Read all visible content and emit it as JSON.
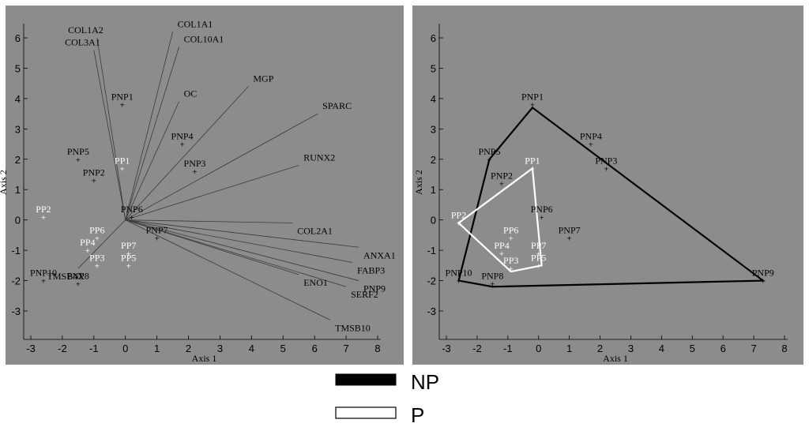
{
  "chart_data": [
    {
      "type": "scatter",
      "subtype": "biplot",
      "xlabel": "Axis 1",
      "ylabel": "Axis 2",
      "xlim": [
        -3.3,
        8.2
      ],
      "ylim": [
        -3.8,
        6.6
      ],
      "xticks": [
        -3,
        -2,
        -1,
        0,
        1,
        2,
        3,
        4,
        5,
        6,
        7,
        8
      ],
      "yticks": [
        -3,
        -2,
        -1,
        0,
        1,
        2,
        3,
        4,
        5,
        6
      ],
      "grid": false,
      "points": [
        {
          "label": "PNP1",
          "x": -0.1,
          "y": 3.8,
          "group": "NP",
          "color": "#000000"
        },
        {
          "label": "PNP2",
          "x": -1.0,
          "y": 1.3,
          "group": "NP",
          "color": "#000000"
        },
        {
          "label": "PNP3",
          "x": 2.2,
          "y": 1.6,
          "group": "NP",
          "color": "#000000"
        },
        {
          "label": "PNP4",
          "x": 1.8,
          "y": 2.5,
          "group": "NP",
          "color": "#000000"
        },
        {
          "label": "PNP5",
          "x": -1.5,
          "y": 2.0,
          "group": "NP",
          "color": "#000000"
        },
        {
          "label": "PNP6",
          "x": 0.2,
          "y": 0.1,
          "group": "NP",
          "color": "#000000"
        },
        {
          "label": "PNP7",
          "x": 1.0,
          "y": -0.6,
          "group": "NP",
          "color": "#000000"
        },
        {
          "label": "PNP8",
          "x": -1.5,
          "y": -2.1,
          "group": "NP",
          "color": "#000000"
        },
        {
          "label": "PNP10",
          "x": -2.6,
          "y": -2.0,
          "group": "NP",
          "color": "#000000"
        },
        {
          "label": "PP1",
          "x": -0.1,
          "y": 1.7,
          "group": "P",
          "color": "#ffffff"
        },
        {
          "label": "PP2",
          "x": -2.6,
          "y": 0.1,
          "group": "P",
          "color": "#ffffff"
        },
        {
          "label": "PP3",
          "x": -0.9,
          "y": -1.5,
          "group": "P",
          "color": "#ffffff"
        },
        {
          "label": "PP4",
          "x": -1.2,
          "y": -1.0,
          "group": "P",
          "color": "#ffffff"
        },
        {
          "label": "PP5",
          "x": 0.1,
          "y": -1.5,
          "group": "P",
          "color": "#ffffff"
        },
        {
          "label": "PP6",
          "x": -0.9,
          "y": -0.6,
          "group": "P",
          "color": "#ffffff"
        },
        {
          "label": "PP7",
          "x": 0.1,
          "y": -1.1,
          "group": "P",
          "color": "#ffffff"
        }
      ],
      "vectors": [
        {
          "label": "COL1A2",
          "x": -0.9,
          "y": 6.0
        },
        {
          "label": "COL3A1",
          "x": -1.0,
          "y": 5.6
        },
        {
          "label": "COL1A1",
          "x": 1.5,
          "y": 6.2
        },
        {
          "label": "COL10A1",
          "x": 1.7,
          "y": 5.7
        },
        {
          "label": "OC",
          "x": 1.7,
          "y": 3.9
        },
        {
          "label": "MGP",
          "x": 3.9,
          "y": 4.4
        },
        {
          "label": "SPARC",
          "x": 6.1,
          "y": 3.5
        },
        {
          "label": "RUNX2",
          "x": 5.5,
          "y": 1.8
        },
        {
          "label": "COL2A1",
          "x": 5.3,
          "y": -0.1
        },
        {
          "label": "ANXA1",
          "x": 7.4,
          "y": -0.9
        },
        {
          "label": "FABP3",
          "x": 7.2,
          "y": -1.4
        },
        {
          "label": "PNP9",
          "x": 7.4,
          "y": -2.0
        },
        {
          "label": "SERF2",
          "x": 7.0,
          "y": -2.2
        },
        {
          "label": "ENO1",
          "x": 5.5,
          "y": -1.8
        },
        {
          "label": "TMSB10",
          "x": 6.5,
          "y": -3.3
        },
        {
          "label": "TMSB4X",
          "x": -1.5,
          "y": -1.6
        }
      ]
    },
    {
      "type": "scatter",
      "subtype": "convex-hull",
      "xlabel": "Axis 1",
      "ylabel": "Axis 2",
      "xlim": [
        -3.3,
        8.2
      ],
      "ylim": [
        -3.8,
        6.6
      ],
      "xticks": [
        -3,
        -2,
        -1,
        0,
        1,
        2,
        3,
        4,
        5,
        6,
        7,
        8
      ],
      "yticks": [
        -3,
        -2,
        -1,
        0,
        1,
        2,
        3,
        4,
        5,
        6
      ],
      "grid": false,
      "points": [
        {
          "label": "PNP1",
          "x": -0.2,
          "y": 3.8,
          "group": "NP",
          "color": "#000000"
        },
        {
          "label": "PNP2",
          "x": -1.2,
          "y": 1.2,
          "group": "NP",
          "color": "#000000"
        },
        {
          "label": "PNP3",
          "x": 2.2,
          "y": 1.7,
          "group": "NP",
          "color": "#000000"
        },
        {
          "label": "PNP4",
          "x": 1.7,
          "y": 2.5,
          "group": "NP",
          "color": "#000000"
        },
        {
          "label": "PNP5",
          "x": -1.6,
          "y": 2.0,
          "group": "NP",
          "color": "#000000"
        },
        {
          "label": "PNP6",
          "x": 0.1,
          "y": 0.1,
          "group": "NP",
          "color": "#000000"
        },
        {
          "label": "PNP7",
          "x": 1.0,
          "y": -0.6,
          "group": "NP",
          "color": "#000000"
        },
        {
          "label": "PNP8",
          "x": -1.5,
          "y": -2.1,
          "group": "NP",
          "color": "#000000"
        },
        {
          "label": "PNP9",
          "x": 7.3,
          "y": -2.0,
          "group": "NP",
          "color": "#000000"
        },
        {
          "label": "PNP10",
          "x": -2.6,
          "y": -2.0,
          "group": "NP",
          "color": "#000000"
        },
        {
          "label": "PP1",
          "x": -0.2,
          "y": 1.7,
          "group": "P",
          "color": "#ffffff"
        },
        {
          "label": "PP2",
          "x": -2.6,
          "y": -0.1,
          "group": "P",
          "color": "#ffffff"
        },
        {
          "label": "PP3",
          "x": -0.9,
          "y": -1.6,
          "group": "P",
          "color": "#ffffff"
        },
        {
          "label": "PP4",
          "x": -1.2,
          "y": -1.1,
          "group": "P",
          "color": "#ffffff"
        },
        {
          "label": "PP5",
          "x": 0.0,
          "y": -1.5,
          "group": "P",
          "color": "#ffffff"
        },
        {
          "label": "PP6",
          "x": -0.9,
          "y": -0.6,
          "group": "P",
          "color": "#ffffff"
        },
        {
          "label": "PP7",
          "x": 0.0,
          "y": -1.1,
          "group": "P",
          "color": "#ffffff"
        }
      ],
      "hulls": [
        {
          "group": "NP",
          "color": "#000000",
          "points": [
            [
              -2.6,
              -2.0
            ],
            [
              -1.6,
              2.0
            ],
            [
              -0.2,
              3.7
            ],
            [
              7.3,
              -2.0
            ],
            [
              -1.5,
              -2.2
            ]
          ]
        },
        {
          "group": "P",
          "color": "#ffffff",
          "points": [
            [
              -2.6,
              -0.1
            ],
            [
              -0.2,
              1.7
            ],
            [
              0.1,
              -1.5
            ],
            [
              -0.9,
              -1.7
            ]
          ]
        }
      ]
    }
  ],
  "legend": [
    {
      "label": "NP",
      "fill": "#000000"
    },
    {
      "label": "P",
      "fill": "#ffffff"
    }
  ]
}
